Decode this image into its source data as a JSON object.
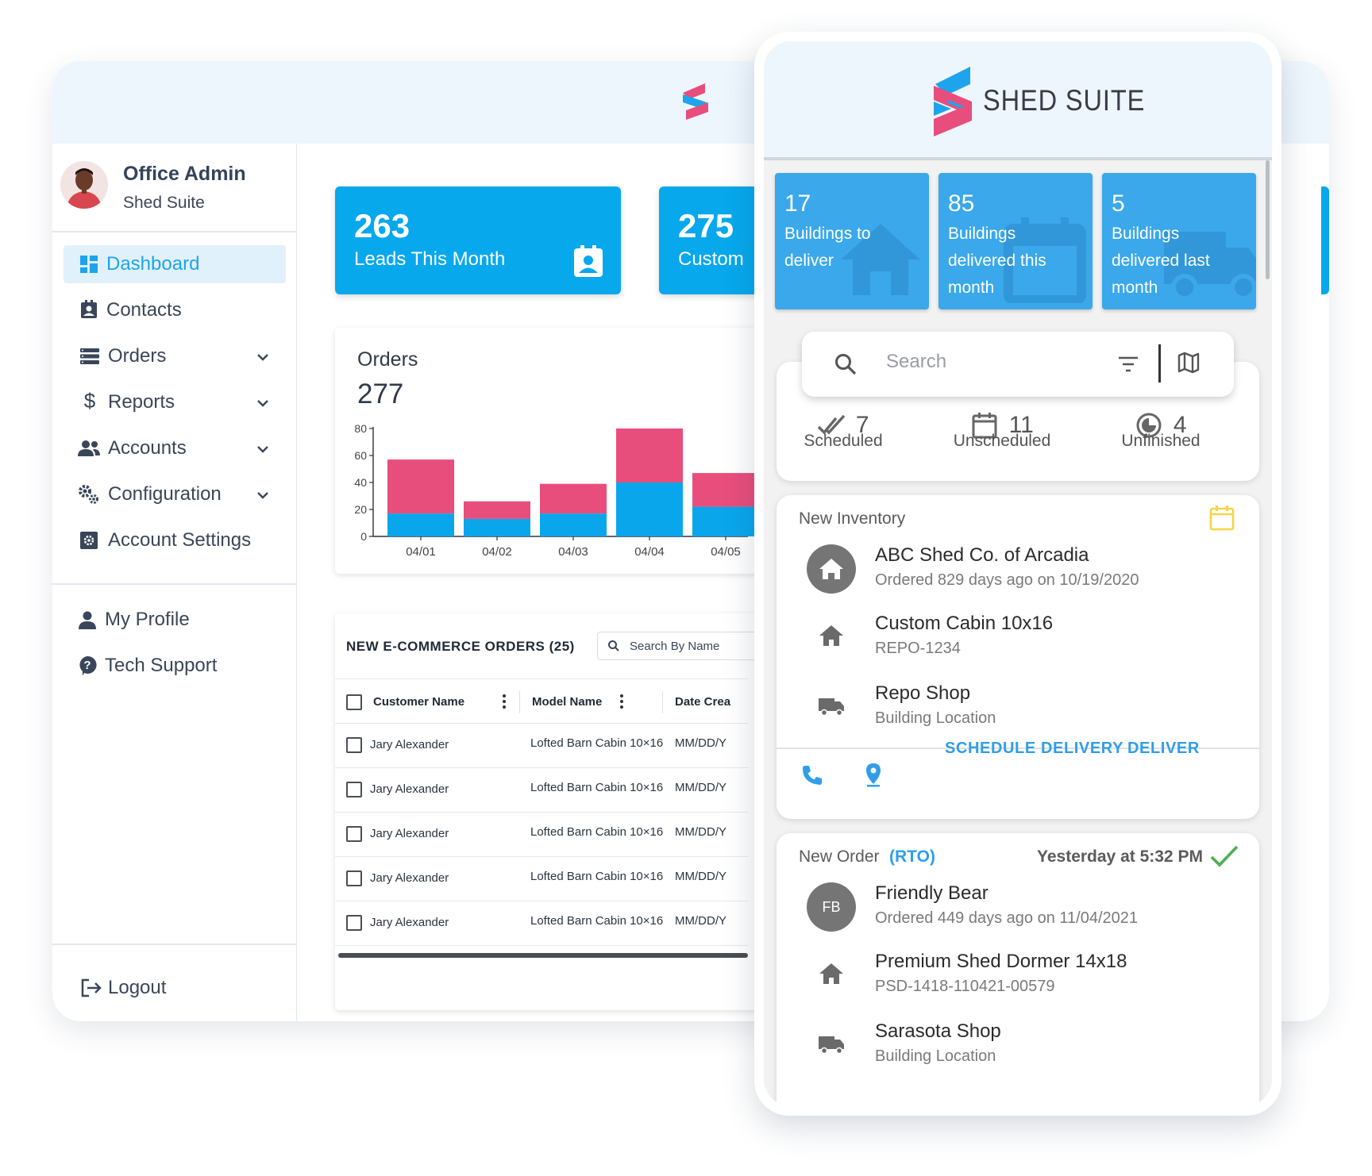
{
  "desktop": {
    "user": {
      "name": "Office Admin",
      "org": "Shed Suite"
    },
    "nav": [
      {
        "label": "Dashboard",
        "icon": "dashboard-icon",
        "active": true
      },
      {
        "label": "Contacts",
        "icon": "contacts-icon"
      },
      {
        "label": "Orders",
        "icon": "orders-icon",
        "has_submenu": true
      },
      {
        "label": "Reports",
        "icon": "dollar-icon",
        "has_submenu": true
      },
      {
        "label": "Accounts",
        "icon": "people-icon",
        "has_submenu": true
      },
      {
        "label": "Configuration",
        "icon": "gears-icon",
        "has_submenu": true
      },
      {
        "label": "Account Settings",
        "icon": "settings-box-icon"
      }
    ],
    "secondary_nav": [
      {
        "label": "My Profile",
        "icon": "person-icon"
      },
      {
        "label": "Tech Support",
        "icon": "help-icon"
      }
    ],
    "logout_label": "Logout",
    "stats": [
      {
        "value": "263",
        "label": "Leads This Month"
      },
      {
        "value": "275",
        "label": "Custom"
      }
    ],
    "orders_panel": {
      "title": "Orders",
      "total": "277"
    },
    "ecommerce": {
      "title": "NEW E-COMMERCE ORDERS (25)",
      "search_placeholder": "Search By Name",
      "columns": [
        "Customer Name",
        "Model Name",
        "Date Crea"
      ],
      "rows": [
        {
          "customer": "Jary Alexander",
          "model": "Lofted Barn Cabin 10×16",
          "date": "MM/DD/Y"
        },
        {
          "customer": "Jary Alexander",
          "model": "Lofted Barn Cabin 10×16",
          "date": "MM/DD/Y"
        },
        {
          "customer": "Jary Alexander",
          "model": "Lofted Barn Cabin 10×16",
          "date": "MM/DD/Y"
        },
        {
          "customer": "Jary Alexander",
          "model": "Lofted Barn Cabin 10×16",
          "date": "MM/DD/Y"
        },
        {
          "customer": "Jary Alexander",
          "model": "Lofted Barn Cabin 10×16",
          "date": "MM/DD/Y"
        }
      ]
    }
  },
  "chart_data": {
    "type": "bar",
    "stacked": true,
    "categories": [
      "04/01",
      "04/02",
      "04/03",
      "04/04",
      "04/05"
    ],
    "series": [
      {
        "values": [
          17,
          13,
          17,
          40,
          22
        ],
        "color": "#0aa6ec"
      },
      {
        "values": [
          40,
          13,
          22,
          40,
          25
        ],
        "color": "#e84e7c"
      }
    ],
    "ylim": [
      0,
      80
    ],
    "yticks": [
      "0",
      "20",
      "40",
      "60",
      "80"
    ]
  },
  "mobile": {
    "brand": "SHED SUITE",
    "cards": [
      {
        "value": "17",
        "label": "Buildings to deliver",
        "bg_icon": "house-icon"
      },
      {
        "value": "85",
        "label": "Buildings delivered this month",
        "bg_icon": "calendar-icon"
      },
      {
        "value": "5",
        "label": "Buildings delivered last month",
        "bg_icon": "truck-icon"
      }
    ],
    "search_placeholder": "Search",
    "summary": [
      {
        "count": "7",
        "label": "Scheduled",
        "icon": "double-check-icon"
      },
      {
        "count": "11",
        "label": "Unscheduled",
        "icon": "calendar-icon"
      },
      {
        "count": "4",
        "label": "Unfinished",
        "icon": "progress-icon"
      }
    ],
    "inventory": {
      "type": "New Inventory",
      "customer": "ABC Shed Co. of Arcadia",
      "ordered": "Ordered 829 days ago on 10/19/2020",
      "model": "Custom Cabin 10x16",
      "serial": "REPO-1234",
      "location": "Repo Shop",
      "location_sub": "Building Location",
      "schedule_label": "SCHEDULE DELIVERY",
      "deliver_label": "DELIVER"
    },
    "order": {
      "type": "New Order",
      "tag": "(RTO)",
      "time": "Yesterday at 5:32 PM",
      "initials": "FB",
      "customer": "Friendly Bear",
      "ordered": "Ordered 449 days ago on 11/04/2021",
      "model": "Premium Shed Dormer 14x18",
      "serial": "PSD-1418-110421-00579",
      "location": "Sarasota Shop",
      "location_sub": "Building Location"
    }
  },
  "colors": {
    "accent": "#07a8ec",
    "pink": "#e84e7c",
    "link": "#2f9ee8",
    "check": "#4caf50",
    "yellow": "#f5d547"
  }
}
